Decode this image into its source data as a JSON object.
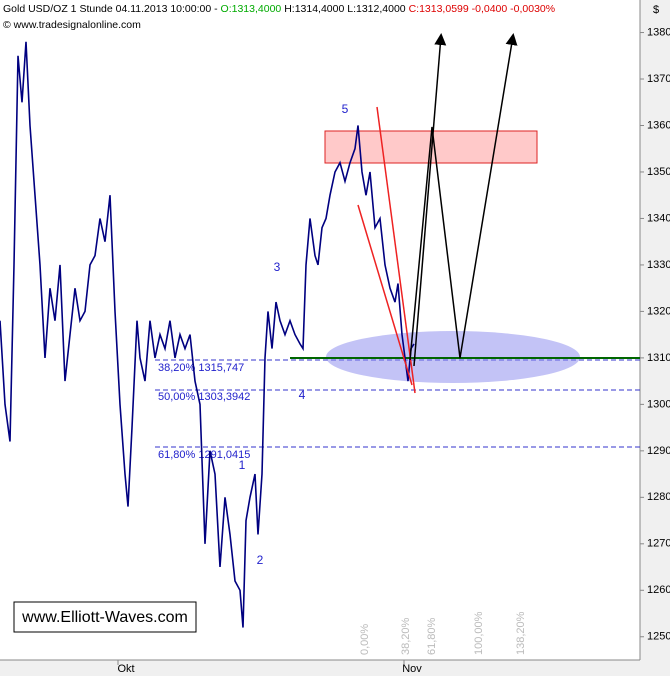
{
  "header": {
    "instrument": "Gold USD/OZ 1 Stunde",
    "timestamp": "04.11.2013 10:00:00 -",
    "open": "O:1313,4000",
    "high": "H:1314,4000",
    "low": "L:1312,4000",
    "close": "C:1313,0599 -0,0400 -0,0030%",
    "copyright": "© www.tradesignalonline.com",
    "currency": "$",
    "watermark": "www.Elliott-Waves.com"
  },
  "chart_data": {
    "type": "line",
    "color": "#000080",
    "x": [
      0,
      1.25,
      2.5,
      3.5,
      4.5,
      5.5,
      6.5,
      7.5,
      8.75,
      10,
      11.25,
      12.5,
      13.75,
      15,
      16.25,
      17.5,
      18.75,
      20,
      21.25,
      22.5,
      23.75,
      25,
      26.25,
      27.5,
      28.75,
      30,
      31.25,
      32,
      33,
      34.25,
      35,
      36.25,
      37.5,
      38.75,
      40,
      41.25,
      42.5,
      43.75,
      45,
      46.25,
      47.5,
      48.75,
      50,
      51.25,
      52.5,
      53.75,
      55,
      56.25,
      57.5,
      58.75,
      60,
      60.75,
      61.5,
      62.5,
      63.75,
      64.5,
      65.5,
      66.25,
      67,
      68,
      69,
      70,
      71.25,
      72.5,
      73.75,
      75,
      75.75,
      76.5,
      77.5,
      78.75,
      79.5,
      80.5,
      81.5,
      82.5,
      83.75,
      85,
      86.25,
      87.5,
      88.75,
      89.5,
      90.5,
      91.5,
      92.5,
      93.75,
      95,
      96.25,
      97.5,
      98.75,
      99.5,
      100.5,
      101.25,
      102,
      102.75,
      103.5
    ],
    "values": [
      1318,
      1300,
      1292,
      1330,
      1375,
      1365,
      1378,
      1360,
      1345,
      1330,
      1310,
      1325,
      1318,
      1330,
      1305,
      1315,
      1325,
      1318,
      1320,
      1330,
      1332,
      1340,
      1335,
      1345,
      1320,
      1300,
      1285,
      1278,
      1295,
      1318,
      1310,
      1305,
      1318,
      1310,
      1315,
      1312,
      1318,
      1310,
      1315,
      1312,
      1315,
      1305,
      1300,
      1270,
      1290,
      1285,
      1265,
      1280,
      1272,
      1262,
      1260,
      1252,
      1275,
      1280,
      1285,
      1272,
      1285,
      1310,
      1320,
      1312,
      1322,
      1318,
      1315,
      1318,
      1315,
      1313,
      1312,
      1330,
      1340,
      1332,
      1330,
      1338,
      1340,
      1345,
      1350,
      1352,
      1348,
      1352,
      1355,
      1360,
      1350,
      1345,
      1350,
      1338,
      1340,
      1330,
      1325,
      1322,
      1326,
      1315,
      1310,
      1305,
      1312,
      1313
    ],
    "xlim": [
      0,
      160
    ],
    "xticks": [
      {
        "value": 29.5,
        "label": "Okt"
      },
      {
        "value": 101,
        "label": "Nov"
      }
    ],
    "ylim": [
      1245,
      1387
    ],
    "yticks": [
      1250,
      1260,
      1270,
      1280,
      1290,
      1300,
      1310,
      1320,
      1330,
      1340,
      1350,
      1360,
      1370,
      1380
    ],
    "wave_labels": [
      "5",
      "3",
      "4",
      "1",
      "2"
    ],
    "fib_labels": [
      "38,20%   1315,747",
      "50,00%   1303,3942",
      "61,80%   1291,0415"
    ],
    "projection_labels": [
      "0,00%",
      "38,20%",
      "61,80%",
      "100,00%",
      "138,20%"
    ]
  }
}
